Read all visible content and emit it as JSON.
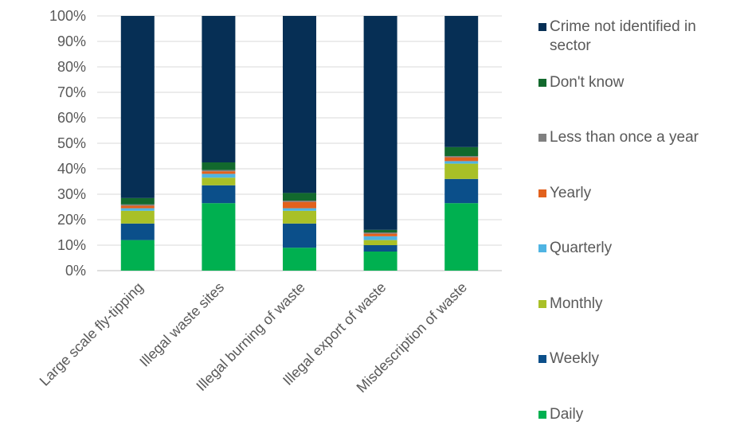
{
  "chart_data": {
    "type": "bar",
    "stacked": true,
    "title": "",
    "xlabel": "",
    "ylabel": "",
    "ylim": [
      0,
      100
    ],
    "y_ticks": [
      "0%",
      "10%",
      "20%",
      "30%",
      "40%",
      "50%",
      "60%",
      "70%",
      "80%",
      "90%",
      "100%"
    ],
    "grid": true,
    "legend_position": "right",
    "categories": [
      "Large scale fly-tipping",
      "Illegal waste sites",
      "Illegal burning of waste",
      "Illegal export of waste",
      "Misdescription of waste"
    ],
    "series": [
      {
        "name": "Daily",
        "color": "#00b050",
        "values": [
          12,
          26.5,
          9,
          7.5,
          26.5
        ]
      },
      {
        "name": "Weekly",
        "color": "#0b4f8a",
        "values": [
          6.5,
          7,
          9.5,
          2.5,
          9.5
        ]
      },
      {
        "name": "Monthly",
        "color": "#a9c027",
        "values": [
          5,
          3,
          5,
          2,
          6
        ]
      },
      {
        "name": "Quarterly",
        "color": "#4fb4e3",
        "values": [
          1,
          1.5,
          1,
          1.5,
          1
        ]
      },
      {
        "name": "Yearly",
        "color": "#e2611d",
        "values": [
          1,
          1,
          2.5,
          1,
          1.5
        ]
      },
      {
        "name": "Less than once a year",
        "color": "#808080",
        "values": [
          0.5,
          0.5,
          0.5,
          0.5,
          0.5
        ]
      },
      {
        "name": "Don't know",
        "color": "#12692d",
        "values": [
          2.5,
          3,
          3,
          1,
          3.5
        ]
      },
      {
        "name": "Crime not identified in sector",
        "color": "#062f55",
        "values": [
          71.5,
          57.5,
          69.5,
          84,
          51.5
        ]
      }
    ]
  }
}
